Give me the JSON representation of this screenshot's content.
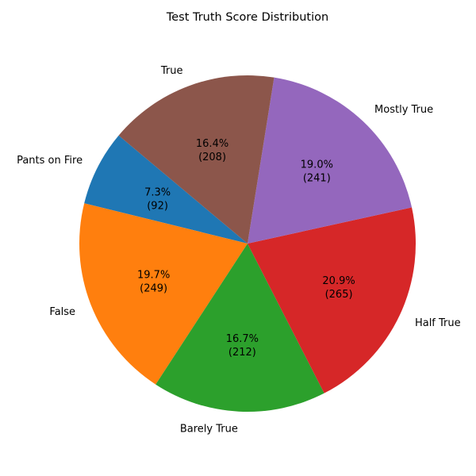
{
  "chart_data": {
    "type": "pie",
    "title": "Test Truth Score Distribution",
    "start_angle_deg": 140,
    "direction": "counterclockwise",
    "slices": [
      {
        "label": "Pants on Fire",
        "value": 92,
        "percent": "7.3%",
        "count": "(92)",
        "color": "#1f77b4"
      },
      {
        "label": "False",
        "value": 249,
        "percent": "19.7%",
        "count": "(249)",
        "color": "#ff7f0e"
      },
      {
        "label": "Barely True",
        "value": 212,
        "percent": "16.7%",
        "count": "(212)",
        "color": "#2ca02c"
      },
      {
        "label": "Half True",
        "value": 265,
        "percent": "20.9%",
        "count": "(265)",
        "color": "#d62728"
      },
      {
        "label": "Mostly True",
        "value": 241,
        "percent": "19.0%",
        "count": "(241)",
        "color": "#9467bd"
      },
      {
        "label": "True",
        "value": 208,
        "percent": "16.4%",
        "count": "(208)",
        "color": "#8c564b"
      }
    ]
  }
}
